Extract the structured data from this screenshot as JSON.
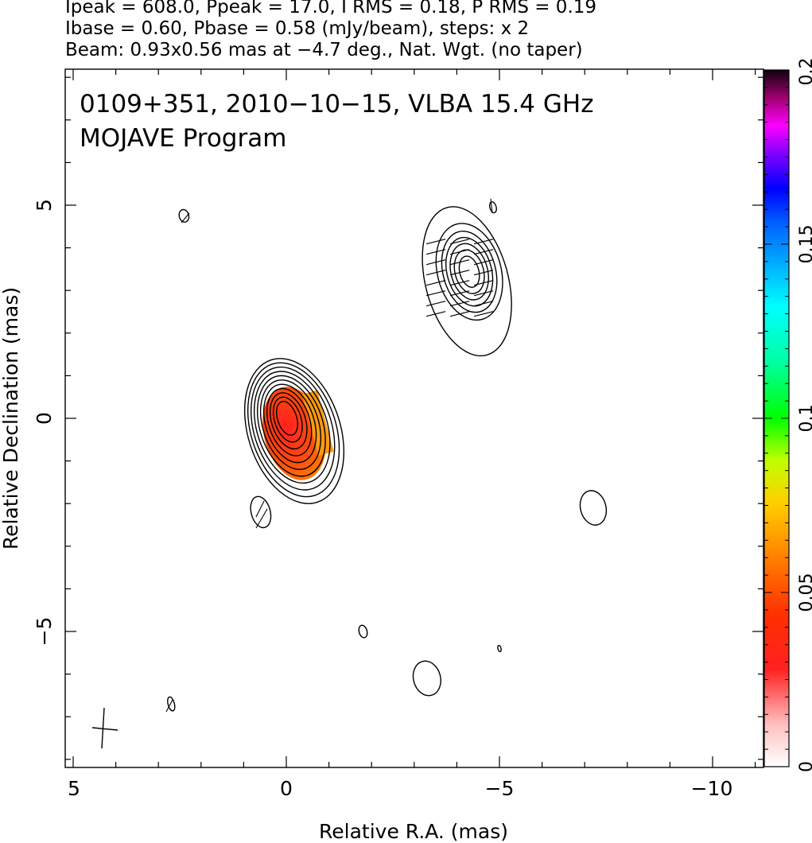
{
  "header": {
    "line1": "Ipeak = 608.0, Ppeak = 17.0, I RMS = 0.18, P RMS = 0.19",
    "line2": "Ibase = 0.60, Pbase = 0.58 (mJy/beam), steps: x 2",
    "line3": "Beam: 0.93x0.56 mas at −4.7 deg., Nat. Wgt. (no taper)"
  },
  "chart_data": {
    "type": "heatmap",
    "title": "0109+351, 2010−10−15, VLBA 15.4 GHz",
    "subtitle": "MOJAVE Program",
    "xlabel": "Relative R.A. (mas)",
    "ylabel": "Relative Declination (mas)",
    "xlim": [
      5.2,
      -11.0
    ],
    "ylim": [
      -8.0,
      8.0
    ],
    "x_ticks": [
      5,
      0,
      -5,
      -10
    ],
    "x_tick_labels": [
      "5",
      "0",
      "−5",
      "−10"
    ],
    "y_ticks": [
      5,
      0,
      -5
    ],
    "y_tick_labels": [
      "5",
      "0",
      "−5"
    ],
    "colorbar": {
      "range": [
        0,
        0.2
      ],
      "ticks": [
        0,
        0.05,
        0.1,
        0.15,
        0.2
      ],
      "tick_labels": [
        "0",
        "0.05",
        "0.1",
        "0.15",
        "0.2"
      ],
      "orientation": "vertical"
    },
    "core": {
      "ra": 0.0,
      "dec": 0.0,
      "contour_levels": 11,
      "polarized_fraction_peak": 0.03
    },
    "jet_component": {
      "ra": -4.2,
      "dec": 3.7,
      "contour_levels": 7
    },
    "beam": {
      "major_mas": 0.93,
      "minor_mas": 0.56,
      "pa_deg": -4.7
    },
    "isolated_contours": [
      {
        "ra": 2.4,
        "dec": 4.75
      },
      {
        "ra": 0.6,
        "dec": -2.2
      },
      {
        "ra": -7.2,
        "dec": -2.1
      },
      {
        "ra": -1.8,
        "dec": -5.0
      },
      {
        "ra": -5.0,
        "dec": -5.4
      },
      {
        "ra": -3.3,
        "dec": -6.1
      },
      {
        "ra": 2.7,
        "dec": -6.7
      },
      {
        "ra": -4.85,
        "dec": 4.95
      }
    ]
  }
}
